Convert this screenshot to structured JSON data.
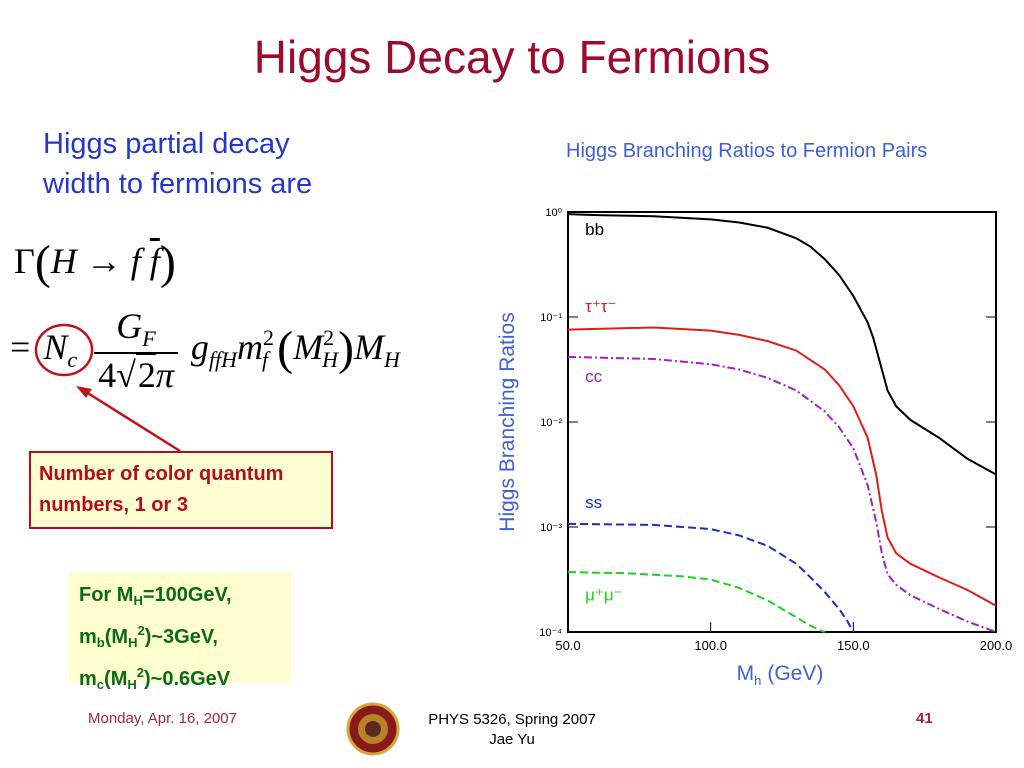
{
  "slide": {
    "title": "Higgs Decay to Fermions",
    "intro": "Higgs partial decay width to fermions are",
    "callout": "Number of color quantum numbers, 1 or 3",
    "values": {
      "line1_pre": "For M",
      "line1_sub": "H",
      "line1_post": "=100GeV,",
      "line2_a": "m",
      "line2_b": "b",
      "line2_c": "(M",
      "line2_d": "H",
      "line2_e": "2",
      "line2_f": ")~3GeV,",
      "line3_a": "m",
      "line3_b": "c",
      "line3_c": "(M",
      "line3_d": "H",
      "line3_e": "2",
      "line3_f": ")~0.6GeV"
    }
  },
  "footer": {
    "date": "Monday, Apr. 16, 2007",
    "course": "PHYS 5326, Spring 2007",
    "author": "Jae Yu",
    "page": "41"
  },
  "colors": {
    "title": "#9b0b2d",
    "blue_text": "#2536c9",
    "callout_border": "#b20d1c",
    "green_text": "#0a6a18",
    "bb": "#000000",
    "tautau": "#e01b1b",
    "cc": "#a020c0",
    "ss": "#1530c8",
    "mumu": "#20d020"
  },
  "chart_data": {
    "type": "line",
    "title": "Higgs Branching Ratios to Fermion Pairs",
    "xlabel": "M",
    "xlabel_sub": "h",
    "xlabel_unit": "(GeV)",
    "ylabel": "Higgs Branching Ratios",
    "xlim": [
      50,
      200
    ],
    "ylim_log10": [
      -4,
      0
    ],
    "log_y": true,
    "x_ticks": [
      "50.0",
      "100.0",
      "150.0",
      "200.0"
    ],
    "y_ticks": [
      "10⁰",
      "10⁻¹",
      "10⁻²",
      "10⁻³",
      "10⁻⁴"
    ],
    "series": [
      {
        "name": "bb",
        "color": "#000000",
        "x": [
          50,
          60,
          80,
          100,
          110,
          120,
          130,
          135,
          140,
          145,
          150,
          155,
          157,
          160,
          162,
          165,
          170,
          180,
          190,
          200
        ],
        "log10y": [
          -0.02,
          -0.03,
          -0.04,
          -0.07,
          -0.1,
          -0.15,
          -0.25,
          -0.33,
          -0.45,
          -0.6,
          -0.8,
          -1.05,
          -1.2,
          -1.5,
          -1.7,
          -1.85,
          -1.98,
          -2.15,
          -2.35,
          -2.5
        ]
      },
      {
        "name": "τ⁺τ⁻",
        "color": "#e01b1b",
        "x": [
          50,
          80,
          100,
          110,
          120,
          130,
          140,
          145,
          150,
          155,
          158,
          160,
          162,
          165,
          170,
          180,
          190,
          200
        ],
        "log10y": [
          -1.12,
          -1.1,
          -1.13,
          -1.17,
          -1.23,
          -1.32,
          -1.5,
          -1.65,
          -1.85,
          -2.15,
          -2.5,
          -2.85,
          -3.1,
          -3.25,
          -3.35,
          -3.48,
          -3.6,
          -3.75
        ]
      },
      {
        "name": "cc",
        "color": "#a020c0",
        "x": [
          50,
          80,
          100,
          110,
          120,
          130,
          140,
          145,
          150,
          155,
          158,
          160,
          162,
          165,
          170,
          180,
          190,
          200
        ],
        "log10y": [
          -1.38,
          -1.4,
          -1.45,
          -1.5,
          -1.58,
          -1.7,
          -1.9,
          -2.05,
          -2.25,
          -2.6,
          -2.95,
          -3.25,
          -3.45,
          -3.55,
          -3.65,
          -3.78,
          -3.9,
          -4.0
        ]
      },
      {
        "name": "ss",
        "color": "#1530c8",
        "x": [
          50,
          80,
          100,
          110,
          120,
          130,
          135,
          140,
          145,
          148,
          150
        ],
        "log10y": [
          -2.97,
          -2.98,
          -3.02,
          -3.08,
          -3.18,
          -3.35,
          -3.48,
          -3.62,
          -3.78,
          -3.9,
          -4.0
        ]
      },
      {
        "name": "μ⁺μ⁻",
        "color": "#20d020",
        "x": [
          50,
          70,
          90,
          100,
          110,
          120,
          125,
          130,
          135,
          138,
          140
        ],
        "log10y": [
          -3.43,
          -3.44,
          -3.47,
          -3.5,
          -3.58,
          -3.7,
          -3.78,
          -3.86,
          -3.94,
          -3.98,
          -4.0
        ]
      }
    ],
    "labels": [
      {
        "text": "bb",
        "color": "#000000",
        "x": 56,
        "log10y": -0.22
      },
      {
        "text": "τ⁺τ⁻",
        "color": "#e01b1b",
        "x": 56,
        "log10y": -0.95
      },
      {
        "text": "cc",
        "color": "#a020c0",
        "x": 56,
        "log10y": -1.62
      },
      {
        "text": "ss",
        "color": "#1530c8",
        "x": 56,
        "log10y": -2.82
      },
      {
        "text": "μ⁺μ⁻",
        "color": "#20d020",
        "x": 56,
        "log10y": -3.7
      }
    ]
  }
}
